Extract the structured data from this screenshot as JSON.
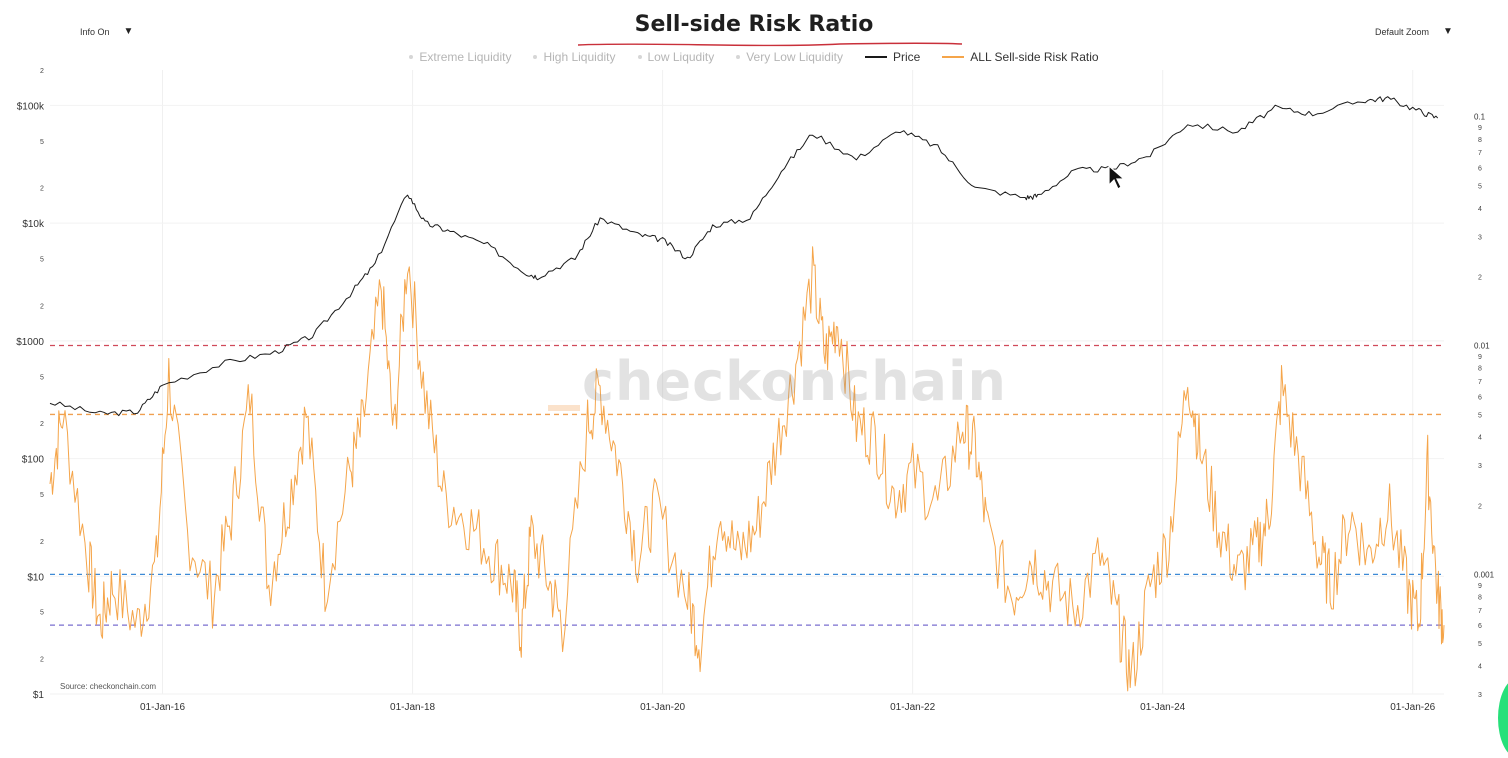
{
  "title": "Sell-side Risk Ratio",
  "controls": {
    "info_label": "Info On",
    "zoom_label": "Default Zoom",
    "caret": "▼"
  },
  "source": "Source: checkonchain.com",
  "watermark": "checkonchain",
  "colors": {
    "price": "#1a1a1a",
    "ratio": "#f5a54a",
    "accent": "#c9303a",
    "line_red": "#d04a5a",
    "line_orange": "#f0a050",
    "line_blue": "#3d8ad6",
    "line_purple": "#7a6fcf"
  },
  "legend": [
    {
      "label": "Extreme Liquidity",
      "style": "dot"
    },
    {
      "label": "High Liquidity",
      "style": "dot"
    },
    {
      "label": "Low Liqudity",
      "style": "dot"
    },
    {
      "label": "Very Low Liquidity",
      "style": "dot"
    },
    {
      "label": "Price",
      "style": "line",
      "color": "#1a1a1a"
    },
    {
      "label": "ALL Sell-side Risk Ratio",
      "style": "line",
      "color": "#f5a54a"
    }
  ],
  "chart_data": {
    "type": "line",
    "title": "Sell-side Risk Ratio",
    "x_ticks": [
      "01-Jan-16",
      "01-Jan-18",
      "01-Jan-20",
      "01-Jan-22",
      "01-Jan-24",
      "01-Jan-26"
    ],
    "x_tick_years": [
      2016,
      2018,
      2020,
      2022,
      2024,
      2026
    ],
    "x_range": [
      2015.1,
      2026.25
    ],
    "y_left": {
      "scale": "log",
      "range": [
        1,
        200000
      ],
      "ticks": [
        "$1",
        "$10",
        "$100",
        "$1000",
        "$10k",
        "$100k"
      ],
      "minor_labels": [
        "2",
        "5"
      ]
    },
    "y_right": {
      "scale": "log",
      "range": [
        0.0003,
        0.16
      ],
      "major_ticks": [
        "0.001",
        "0.01",
        "0.1"
      ],
      "minor_labels": [
        "2",
        "3",
        "4",
        "5",
        "6",
        "7",
        "8",
        "9"
      ]
    },
    "reference_lines": [
      {
        "name": "Very Low Liquidity",
        "value": 0.01,
        "color": "#d04a5a"
      },
      {
        "name": "Low Liqudity",
        "value": 0.005,
        "color": "#f0a050"
      },
      {
        "name": "High Liquidity",
        "value": 0.001,
        "color": "#3d8ad6"
      },
      {
        "name": "Extreme Liquidity",
        "value": 0.0006,
        "color": "#7a6fcf"
      }
    ],
    "series": [
      {
        "name": "Price",
        "axis": "left",
        "points": [
          [
            2015.1,
            300
          ],
          [
            2015.5,
            240
          ],
          [
            2015.8,
            250
          ],
          [
            2016.0,
            420
          ],
          [
            2016.5,
            650
          ],
          [
            2016.9,
            800
          ],
          [
            2017.2,
            1100
          ],
          [
            2017.5,
            2500
          ],
          [
            2017.7,
            4500
          ],
          [
            2017.96,
            18000
          ],
          [
            2018.1,
            10000
          ],
          [
            2018.3,
            8500
          ],
          [
            2018.6,
            6500
          ],
          [
            2018.9,
            3800
          ],
          [
            2019.0,
            3500
          ],
          [
            2019.3,
            5000
          ],
          [
            2019.5,
            11000
          ],
          [
            2019.8,
            8000
          ],
          [
            2020.0,
            7200
          ],
          [
            2020.2,
            5000
          ],
          [
            2020.4,
            9500
          ],
          [
            2020.7,
            11000
          ],
          [
            2020.95,
            28000
          ],
          [
            2021.2,
            58000
          ],
          [
            2021.55,
            35000
          ],
          [
            2021.9,
            62000
          ],
          [
            2022.2,
            44000
          ],
          [
            2022.5,
            20000
          ],
          [
            2022.9,
            16500
          ],
          [
            2023.0,
            17000
          ],
          [
            2023.3,
            28000
          ],
          [
            2023.6,
            29000
          ],
          [
            2023.9,
            38000
          ],
          [
            2024.2,
            70000
          ],
          [
            2024.6,
            60000
          ],
          [
            2024.9,
            95000
          ],
          [
            2025.2,
            85000
          ],
          [
            2025.6,
            110000
          ],
          [
            2025.8,
            115000
          ],
          [
            2026.05,
            90000
          ],
          [
            2026.2,
            78000
          ]
        ]
      },
      {
        "name": "ALL Sell-side Risk Ratio",
        "axis": "right",
        "points": [
          [
            2015.1,
            0.0025
          ],
          [
            2015.2,
            0.005
          ],
          [
            2015.4,
            0.0012
          ],
          [
            2015.5,
            0.0006
          ],
          [
            2015.6,
            0.0009
          ],
          [
            2015.8,
            0.0006
          ],
          [
            2015.95,
            0.0011
          ],
          [
            2016.05,
            0.0075
          ],
          [
            2016.2,
            0.0015
          ],
          [
            2016.4,
            0.0008
          ],
          [
            2016.55,
            0.0018
          ],
          [
            2016.7,
            0.006
          ],
          [
            2016.85,
            0.0009
          ],
          [
            2017.0,
            0.002
          ],
          [
            2017.15,
            0.005
          ],
          [
            2017.3,
            0.0009
          ],
          [
            2017.5,
            0.0028
          ],
          [
            2017.6,
            0.0045
          ],
          [
            2017.75,
            0.018
          ],
          [
            2017.85,
            0.004
          ],
          [
            2017.96,
            0.025
          ],
          [
            2018.1,
            0.006
          ],
          [
            2018.25,
            0.0022
          ],
          [
            2018.45,
            0.0017
          ],
          [
            2018.65,
            0.0012
          ],
          [
            2018.8,
            0.0009
          ],
          [
            2018.87,
            0.00055
          ],
          [
            2018.95,
            0.0015
          ],
          [
            2019.1,
            0.0009
          ],
          [
            2019.2,
            0.0006
          ],
          [
            2019.4,
            0.0045
          ],
          [
            2019.5,
            0.0065
          ],
          [
            2019.65,
            0.003
          ],
          [
            2019.8,
            0.0012
          ],
          [
            2019.95,
            0.002
          ],
          [
            2020.2,
            0.0008
          ],
          [
            2020.3,
            0.0005
          ],
          [
            2020.45,
            0.002
          ],
          [
            2020.6,
            0.0012
          ],
          [
            2020.75,
            0.0016
          ],
          [
            2020.9,
            0.0035
          ],
          [
            2021.05,
            0.0075
          ],
          [
            2021.2,
            0.02
          ],
          [
            2021.3,
            0.009
          ],
          [
            2021.4,
            0.013
          ],
          [
            2021.55,
            0.0045
          ],
          [
            2021.7,
            0.004
          ],
          [
            2021.85,
            0.0022
          ],
          [
            2022.0,
            0.0028
          ],
          [
            2022.2,
            0.002
          ],
          [
            2022.4,
            0.0045
          ],
          [
            2022.5,
            0.0035
          ],
          [
            2022.6,
            0.0015
          ],
          [
            2022.8,
            0.0008
          ],
          [
            2022.95,
            0.0012
          ],
          [
            2023.1,
            0.0009
          ],
          [
            2023.3,
            0.0007
          ],
          [
            2023.5,
            0.0012
          ],
          [
            2023.65,
            0.0006
          ],
          [
            2023.75,
            0.00035
          ],
          [
            2023.9,
            0.0009
          ],
          [
            2024.05,
            0.0014
          ],
          [
            2024.2,
            0.0075
          ],
          [
            2024.3,
            0.0035
          ],
          [
            2024.45,
            0.0016
          ],
          [
            2024.6,
            0.001
          ],
          [
            2024.75,
            0.0013
          ],
          [
            2024.85,
            0.0018
          ],
          [
            2024.95,
            0.0065
          ],
          [
            2025.1,
            0.003
          ],
          [
            2025.25,
            0.0012
          ],
          [
            2025.35,
            0.0009
          ],
          [
            2025.5,
            0.0018
          ],
          [
            2025.65,
            0.0012
          ],
          [
            2025.8,
            0.002
          ],
          [
            2025.95,
            0.0009
          ],
          [
            2026.05,
            0.0006
          ],
          [
            2026.12,
            0.003
          ],
          [
            2026.2,
            0.0008
          ],
          [
            2026.25,
            0.0006
          ]
        ]
      }
    ]
  }
}
